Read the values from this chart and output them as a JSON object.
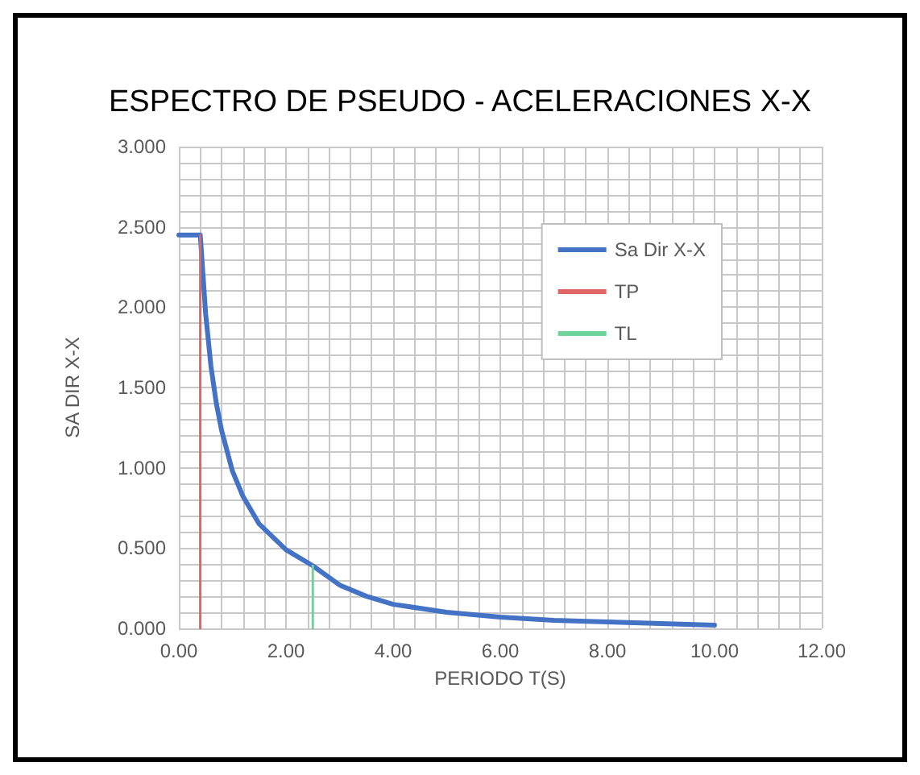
{
  "chart_data": {
    "type": "line",
    "title": "ESPECTRO DE PSEUDO - ACELERACIONES X-X",
    "xlabel": "PERIODO T(S)",
    "ylabel": "SA DIR X-X",
    "series": [
      {
        "name": "Sa Dir X-X",
        "color": "#4472c4",
        "x": [
          0,
          0.4,
          0.5,
          0.6,
          0.7,
          0.8,
          1.0,
          1.2,
          1.5,
          2.0,
          2.5,
          3.0,
          3.5,
          4.0,
          5.0,
          6.0,
          7.0,
          8.0,
          9.0,
          10.0
        ],
        "values": [
          2.45,
          2.45,
          1.96,
          1.63,
          1.4,
          1.23,
          0.98,
          0.82,
          0.65,
          0.49,
          0.39,
          0.27,
          0.2,
          0.15,
          0.1,
          0.07,
          0.05,
          0.04,
          0.03,
          0.02
        ]
      },
      {
        "name": "TP",
        "color": "#e06666",
        "x": [
          0.4,
          0.4
        ],
        "values": [
          0,
          2.45
        ]
      },
      {
        "name": "TL",
        "color": "#6fd49a",
        "x": [
          2.5,
          2.5
        ],
        "values": [
          0,
          0.39
        ]
      }
    ],
    "xlim": [
      0,
      12
    ],
    "xticks": [
      {
        "value": 0,
        "label": "0.00"
      },
      {
        "value": 0.4,
        "label": null
      },
      {
        "value": 0.8,
        "label": null
      },
      {
        "value": 1.2,
        "label": null
      },
      {
        "value": 1.6,
        "label": null
      },
      {
        "value": 2,
        "label": "2.00"
      },
      {
        "value": 2.4,
        "label": null
      },
      {
        "value": 2.8,
        "label": null
      },
      {
        "value": 3.2,
        "label": null
      },
      {
        "value": 3.6,
        "label": null
      },
      {
        "value": 4,
        "label": "4.00"
      },
      {
        "value": 4.4,
        "label": null
      },
      {
        "value": 4.8,
        "label": null
      },
      {
        "value": 5.2,
        "label": null
      },
      {
        "value": 5.6,
        "label": null
      },
      {
        "value": 6,
        "label": "6.00"
      },
      {
        "value": 6.4,
        "label": null
      },
      {
        "value": 6.8,
        "label": null
      },
      {
        "value": 7.2,
        "label": null
      },
      {
        "value": 7.6,
        "label": null
      },
      {
        "value": 8,
        "label": "8.00"
      },
      {
        "value": 8.4,
        "label": null
      },
      {
        "value": 8.8,
        "label": null
      },
      {
        "value": 9.2,
        "label": null
      },
      {
        "value": 9.6,
        "label": null
      },
      {
        "value": 10,
        "label": "10.00"
      },
      {
        "value": 10.4,
        "label": null
      },
      {
        "value": 10.8,
        "label": null
      },
      {
        "value": 11.2,
        "label": null
      },
      {
        "value": 11.6,
        "label": null
      },
      {
        "value": 12,
        "label": "12.00"
      }
    ],
    "ylim": [
      0,
      3
    ],
    "yticks": [
      {
        "value": 0,
        "label": "0.000"
      },
      {
        "value": 0.1,
        "label": null
      },
      {
        "value": 0.2,
        "label": null
      },
      {
        "value": 0.3,
        "label": null
      },
      {
        "value": 0.4,
        "label": null
      },
      {
        "value": 0.5,
        "label": "0.500"
      },
      {
        "value": 0.6,
        "label": null
      },
      {
        "value": 0.7,
        "label": null
      },
      {
        "value": 0.8,
        "label": null
      },
      {
        "value": 0.9,
        "label": null
      },
      {
        "value": 1,
        "label": "1.000"
      },
      {
        "value": 1.1,
        "label": null
      },
      {
        "value": 1.2,
        "label": null
      },
      {
        "value": 1.3,
        "label": null
      },
      {
        "value": 1.4,
        "label": null
      },
      {
        "value": 1.5,
        "label": "1.500"
      },
      {
        "value": 1.6,
        "label": null
      },
      {
        "value": 1.7,
        "label": null
      },
      {
        "value": 1.8,
        "label": null
      },
      {
        "value": 1.9,
        "label": null
      },
      {
        "value": 2,
        "label": "2.000"
      },
      {
        "value": 2.1,
        "label": null
      },
      {
        "value": 2.2,
        "label": null
      },
      {
        "value": 2.3,
        "label": null
      },
      {
        "value": 2.4,
        "label": null
      },
      {
        "value": 2.5,
        "label": "2.500"
      },
      {
        "value": 2.6,
        "label": null
      },
      {
        "value": 2.7,
        "label": null
      },
      {
        "value": 2.8,
        "label": null
      },
      {
        "value": 2.9,
        "label": null
      },
      {
        "value": 3,
        "label": "3.000"
      }
    ],
    "grid": true,
    "legend": "top right",
    "marker": "none",
    "line_style": "solid"
  }
}
